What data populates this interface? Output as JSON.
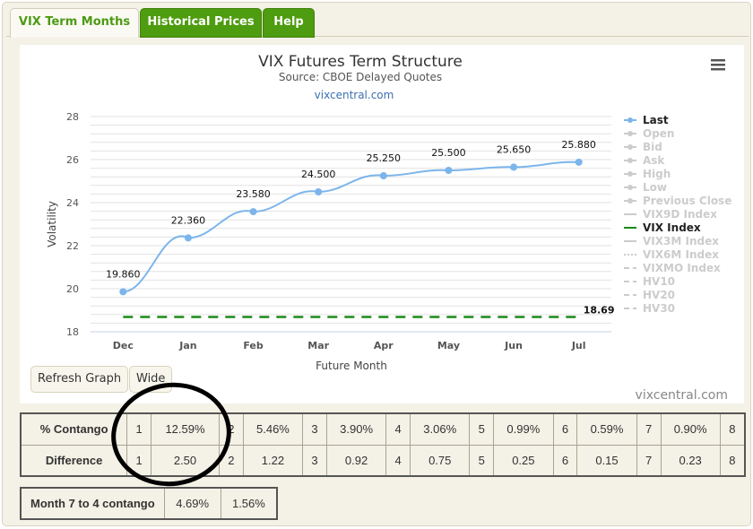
{
  "tabs": [
    {
      "label": "VIX Term Months",
      "active": true
    },
    {
      "label": "Historical Prices"
    },
    {
      "label": "Help"
    }
  ],
  "chart_data": {
    "type": "line",
    "title": "VIX Futures Term Structure",
    "subtitle": "Source: CBOE Delayed Quotes",
    "credit_link": "vixcentral.com",
    "watermark": "vixcentral.com",
    "xlabel": "Future Month",
    "ylabel": "Volatility",
    "categories": [
      "Dec",
      "Jan",
      "Feb",
      "Mar",
      "Apr",
      "May",
      "Jun",
      "Jul"
    ],
    "ylim": [
      18,
      28
    ],
    "yticks": [
      18,
      20,
      22,
      24,
      26,
      28
    ],
    "grid": true,
    "series": [
      {
        "name": "Last",
        "values": [
          19.86,
          22.36,
          23.58,
          24.5,
          25.25,
          25.5,
          25.65,
          25.88
        ],
        "labels": [
          "19.860",
          "22.360",
          "23.580",
          "24.500",
          "25.250",
          "25.500",
          "25.650",
          "25.880"
        ],
        "color": "#7cb5ec"
      },
      {
        "name": "VIX Index",
        "value": 18.69,
        "label": "18.69",
        "color": "#1a8a1a",
        "style": "dashed"
      }
    ],
    "legend": {
      "position": "right",
      "items": [
        {
          "label": "Last",
          "active": true,
          "color": "#7cb5ec"
        },
        {
          "label": "Open"
        },
        {
          "label": "Bid"
        },
        {
          "label": "Ask"
        },
        {
          "label": "High"
        },
        {
          "label": "Low"
        },
        {
          "label": "Previous Close"
        },
        {
          "label": "VIX9D Index"
        },
        {
          "label": "VIX Index",
          "active": true,
          "color": "#1a8a1a"
        },
        {
          "label": "VIX3M Index"
        },
        {
          "label": "VIX6M Index"
        },
        {
          "label": "VIXMO Index"
        },
        {
          "label": "HV10"
        },
        {
          "label": "HV20"
        },
        {
          "label": "HV30"
        }
      ]
    }
  },
  "buttons": {
    "refresh": "Refresh Graph",
    "wide": "Wide"
  },
  "contango": {
    "label": "% Contango",
    "cells": [
      [
        "1",
        "12.59%"
      ],
      [
        "2",
        "5.46%"
      ],
      [
        "3",
        "3.90%"
      ],
      [
        "4",
        "3.06%"
      ],
      [
        "5",
        "0.99%"
      ],
      [
        "6",
        "0.59%"
      ],
      [
        "7",
        "0.90%"
      ],
      [
        "8",
        ""
      ]
    ]
  },
  "difference": {
    "label": "Difference",
    "cells": [
      [
        "1",
        "2.50"
      ],
      [
        "2",
        "1.22"
      ],
      [
        "3",
        "0.92"
      ],
      [
        "4",
        "0.75"
      ],
      [
        "5",
        "0.25"
      ],
      [
        "6",
        "0.15"
      ],
      [
        "7",
        "0.23"
      ],
      [
        "8",
        ""
      ]
    ]
  },
  "month7to4": {
    "label": "Month 7 to 4 contango",
    "values": [
      "4.69%",
      "1.56%"
    ]
  }
}
